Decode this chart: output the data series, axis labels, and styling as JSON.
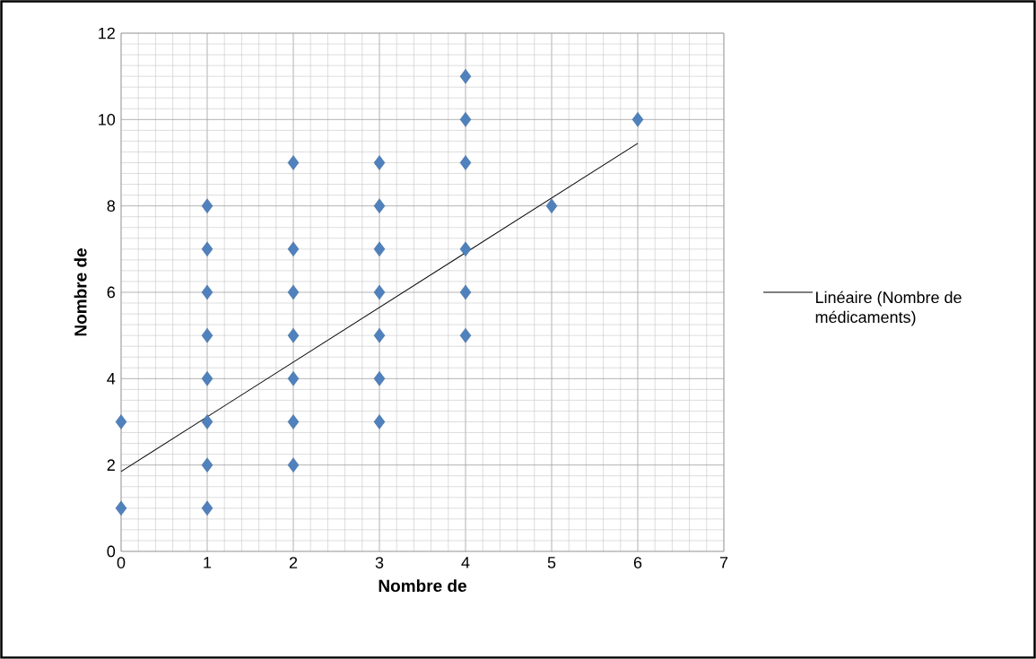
{
  "chart_data": {
    "type": "scatter",
    "xlabel": "Nombre de",
    "ylabel": "Nombre de",
    "xlim": [
      0,
      7
    ],
    "ylim": [
      0,
      12
    ],
    "xticks": [
      0,
      1,
      2,
      3,
      4,
      5,
      6,
      7
    ],
    "yticks": [
      0,
      2,
      4,
      6,
      8,
      10,
      12
    ],
    "grid": true,
    "legend": "right",
    "series": [
      {
        "marker": "diamond",
        "color": "#4f81bd",
        "x": [
          0,
          0,
          1,
          1,
          1,
          1,
          1,
          1,
          1,
          1,
          2,
          2,
          2,
          2,
          2,
          2,
          2,
          3,
          3,
          3,
          3,
          3,
          3,
          3,
          4,
          4,
          4,
          4,
          4,
          4,
          5,
          6
        ],
        "values": [
          1,
          3,
          1,
          2,
          3,
          4,
          5,
          6,
          7,
          8,
          2,
          3,
          4,
          5,
          6,
          7,
          9,
          3,
          4,
          5,
          6,
          7,
          8,
          9,
          5,
          6,
          7,
          9,
          10,
          11,
          8,
          10
        ]
      },
      {
        "type": "line",
        "name": "Linéaire (Nombre de médicaments)",
        "color": "#000000",
        "x": [
          0,
          6
        ],
        "values": [
          1.85,
          9.45
        ]
      }
    ]
  }
}
